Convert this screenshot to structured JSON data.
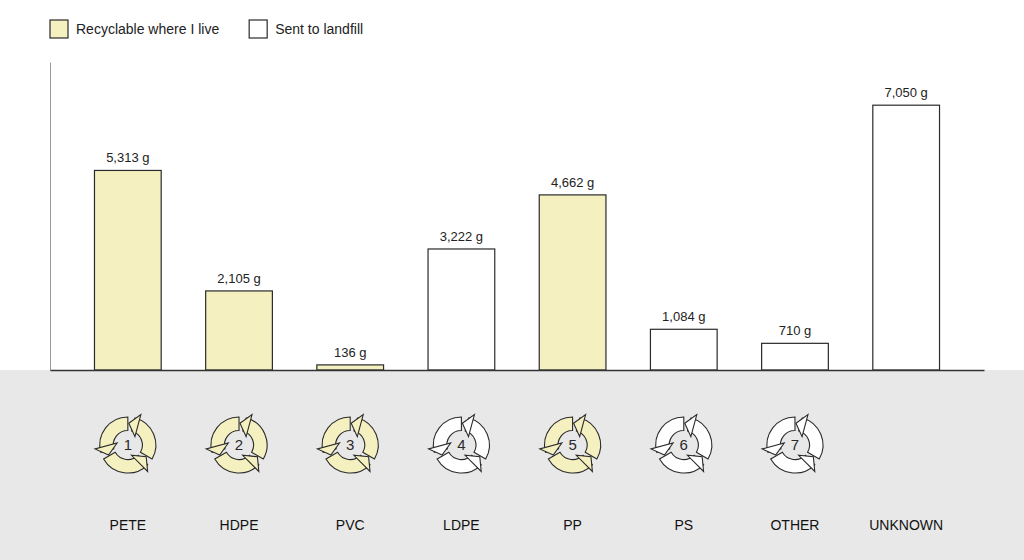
{
  "chart_data": {
    "type": "bar",
    "categories": [
      "PETE",
      "HDPE",
      "PVC",
      "LDPE",
      "PP",
      "PS",
      "OTHER",
      "UNKNOWN"
    ],
    "series": [
      {
        "name": "Recyclable where I live",
        "color": "#f5f0c0",
        "values": [
          5313,
          2105,
          136,
          null,
          4662,
          null,
          null,
          null
        ],
        "value_labels": [
          "5,313 g",
          "2,105 g",
          "136 g",
          null,
          "4,662 g",
          null,
          null,
          null
        ]
      },
      {
        "name": "Sent to landfill",
        "color": "#ffffff",
        "values": [
          null,
          null,
          null,
          3222,
          null,
          1084,
          710,
          7050
        ],
        "value_labels": [
          null,
          null,
          null,
          "3,222 g",
          null,
          "1,084 g",
          "710 g",
          "7,050 g"
        ]
      }
    ],
    "recycling_numbers": [
      1,
      2,
      3,
      4,
      5,
      6,
      7,
      null
    ],
    "ylim": [
      0,
      8200
    ],
    "yticks": [],
    "data_labels": true,
    "legend": "upper left",
    "tick_labels": "x",
    "grid": false
  }
}
